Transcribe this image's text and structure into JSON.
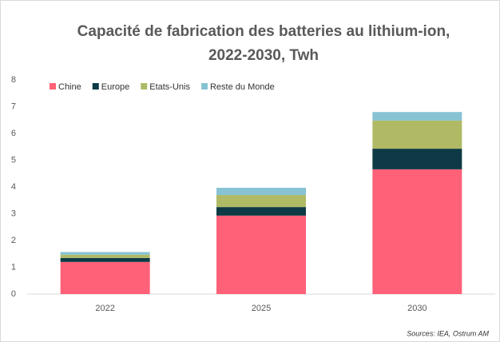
{
  "chart_data": {
    "type": "stacked_bar",
    "title": [
      "Capacité de fabrication des batteries au lithium-ion,",
      "2022-2030, Twh"
    ],
    "categories": [
      "2022",
      "2025",
      "2030"
    ],
    "series": [
      {
        "name": "Chine",
        "color": "#ff6178",
        "values": [
          1.2,
          2.93,
          4.66
        ]
      },
      {
        "name": "Europe",
        "color": "#0d3a45",
        "values": [
          0.15,
          0.32,
          0.77
        ]
      },
      {
        "name": "Etats-Unis",
        "color": "#b0ba65",
        "values": [
          0.12,
          0.45,
          1.05
        ]
      },
      {
        "name": "Reste du Monde",
        "color": "#87c3d3",
        "values": [
          0.1,
          0.27,
          0.32
        ]
      }
    ],
    "ylim": [
      0,
      8
    ],
    "yticks": [
      0,
      1,
      2,
      3,
      4,
      5,
      6,
      7,
      8
    ],
    "source": "Sources: IEA, Ostrum AM"
  }
}
